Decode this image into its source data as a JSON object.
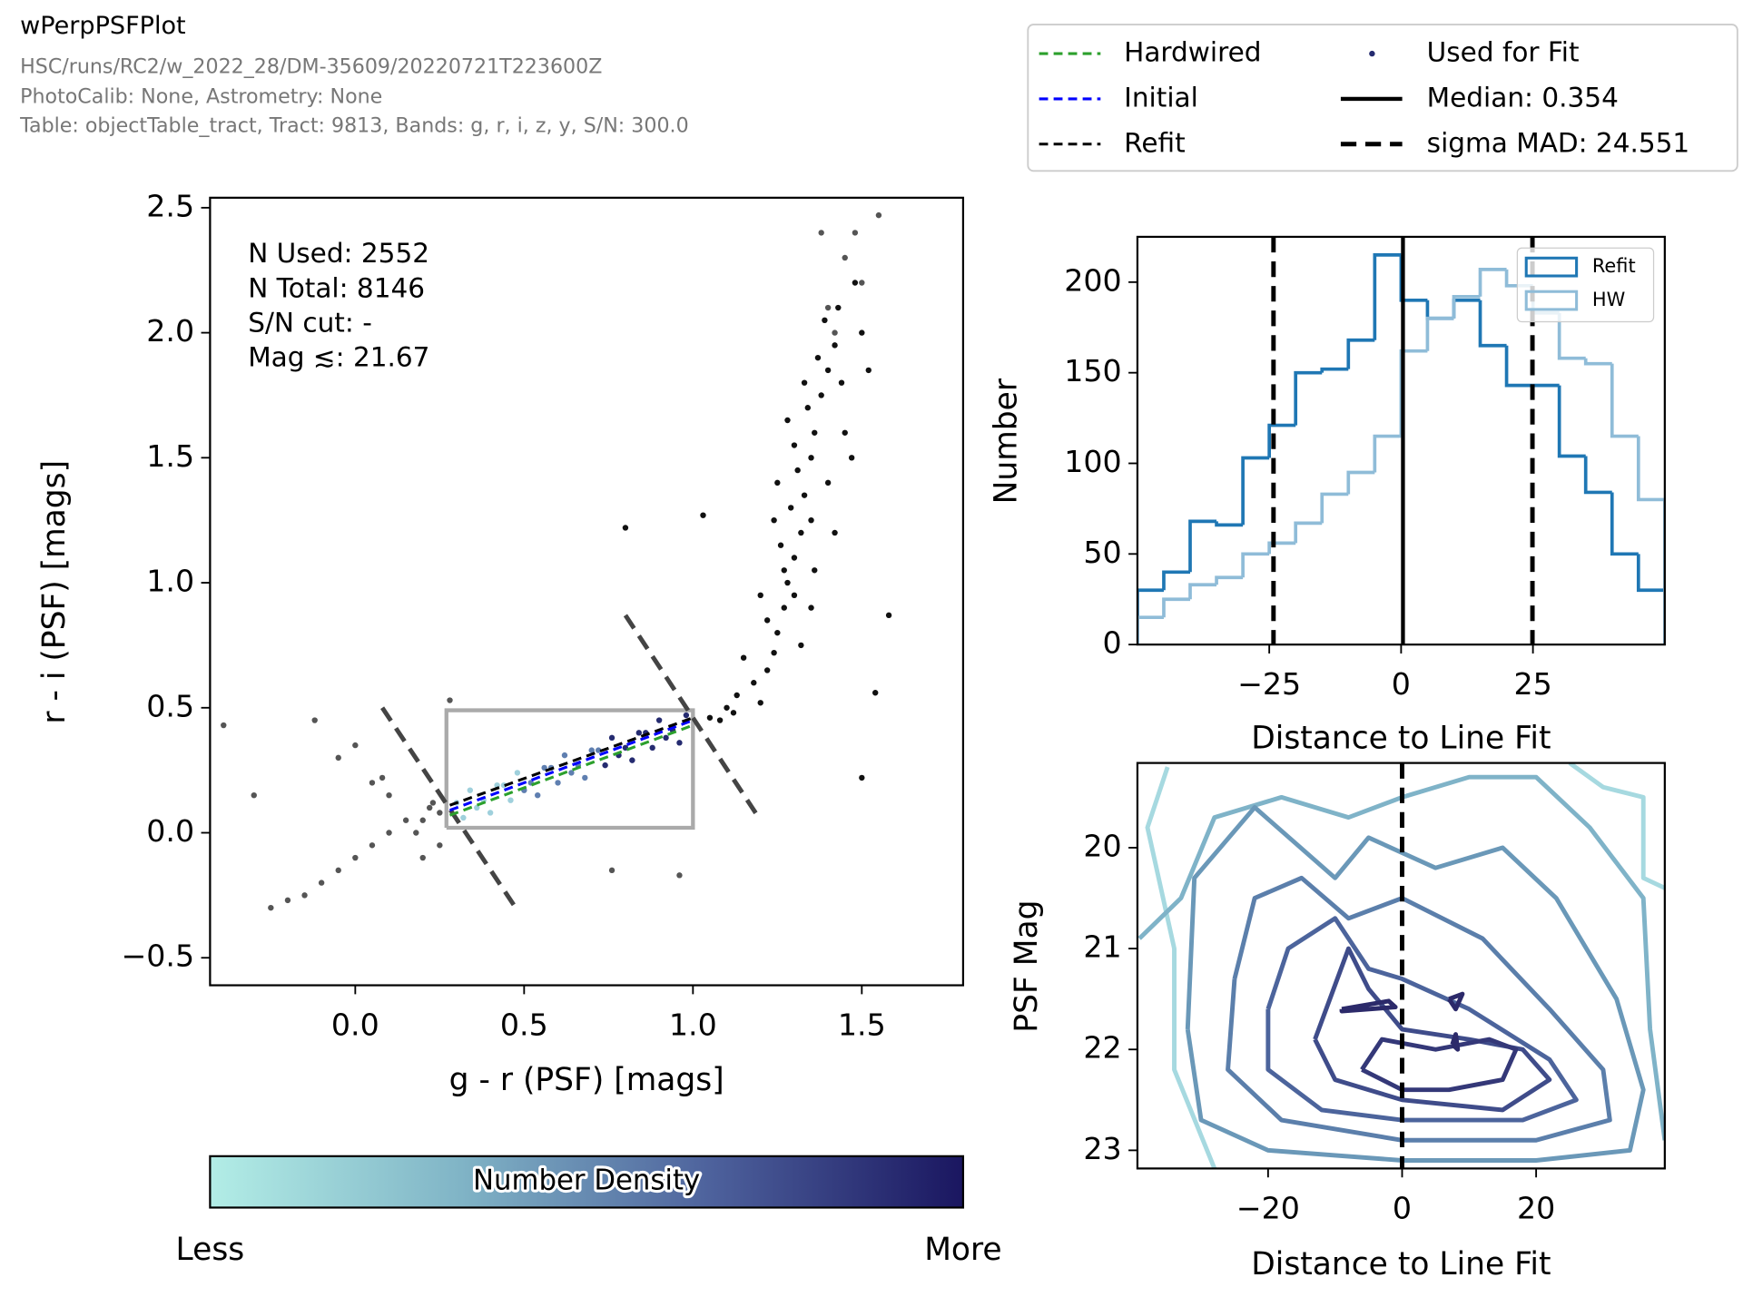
{
  "header": {
    "title": "wPerpPSFPlot",
    "subtitle": [
      "HSC/runs/RC2/w_2022_28/DM-35609/20220721T223600Z",
      "PhotoCalib: None, Astrometry: None",
      "Table: objectTable_tract, Tract: 9813, Bands: g, r, i, z, y, S/N: 300.0"
    ]
  },
  "legend": {
    "entries": [
      {
        "label": "Hardwired",
        "color": "#2ca02c",
        "style": "dashed"
      },
      {
        "label": "Initial",
        "color": "#0000ff",
        "style": "dashed"
      },
      {
        "label": "Refit",
        "color": "#000000",
        "style": "dashed"
      },
      {
        "label": "Used for Fit",
        "color": "#252b70",
        "style": "dot"
      },
      {
        "label": "Median: 0.354",
        "color": "#000000",
        "style": "solid"
      },
      {
        "label": "sigma MAD: 24.551",
        "color": "#000000",
        "style": "bold-dashed"
      }
    ]
  },
  "colorbar": {
    "label": "Number Density",
    "low": "Less",
    "high": "More",
    "colors": [
      "#b2ede6",
      "#80b4c6",
      "#4d619c",
      "#1a1660"
    ]
  },
  "chart_data": [
    {
      "type": "scatter",
      "xlabel": "g - r (PSF) [mags]",
      "ylabel": "r - i (PSF) [mags]",
      "xlim": [
        -0.43,
        1.8
      ],
      "ylim": [
        -0.61,
        2.54
      ],
      "xticks": [
        {
          "value": 0,
          "label": "0.0"
        },
        0.5,
        {
          "value": 1,
          "label": "1.0"
        },
        1.5
      ],
      "yticks": [
        {
          "value": -0.5,
          "label": "−0.5"
        },
        {
          "value": 0,
          "label": "0.0"
        },
        0.5,
        {
          "value": 1,
          "label": "1.0"
        },
        1.5,
        {
          "value": 2,
          "label": "2.0"
        },
        2.5
      ],
      "annotation": [
        "N Used: 2552",
        "N Total: 8146",
        "S/N cut: -",
        "Mag ≲: 21.67"
      ],
      "series": [
        {
          "color": "#111111",
          "x": [
            1.05,
            1.1,
            1.13,
            1.18,
            1.2,
            1.22,
            1.24,
            1.25,
            1.27,
            1.28,
            1.3,
            1.26,
            1.32,
            1.29,
            1.33,
            1.31,
            1.35,
            1.3,
            1.36,
            1.34,
            1.38,
            1.33,
            1.4,
            1.37,
            1.42,
            1.39,
            1.43,
            1.35,
            1.4,
            1.27,
            1.22,
            1.15,
            1.45,
            1.25,
            1.42,
            1.3,
            1.36,
            1.44,
            1.47,
            1.2,
            1.28,
            1.35,
            1.24,
            1.32,
            1.08,
            1.12,
            1.58,
            1.54,
            1.5,
            0.8,
            1.03,
            1.48,
            1.5,
            1.52
          ],
          "y": [
            0.46,
            0.5,
            0.55,
            0.6,
            0.52,
            0.65,
            0.72,
            0.8,
            0.9,
            1.0,
            1.1,
            1.15,
            1.2,
            1.3,
            1.35,
            1.45,
            1.5,
            1.55,
            1.6,
            1.7,
            1.75,
            1.8,
            1.85,
            1.9,
            1.95,
            2.05,
            2.1,
            1.25,
            1.4,
            1.05,
            0.85,
            0.7,
            1.6,
            1.4,
            1.2,
            0.95,
            1.05,
            1.8,
            1.5,
            0.95,
            1.65,
            0.9,
            1.25,
            0.75,
            0.45,
            0.48,
            0.87,
            0.56,
            0.22,
            1.22,
            1.27,
            2.2,
            2.0,
            1.85
          ]
        },
        {
          "color": "#555555",
          "x": [
            -0.39,
            -0.3,
            -0.25,
            -0.2,
            -0.15,
            -0.1,
            -0.05,
            0.0,
            0.05,
            0.1,
            0.15,
            0.2,
            0.22,
            0.25,
            0.23,
            -0.12,
            -0.05,
            0.0,
            0.05,
            0.1,
            0.18,
            0.2,
            0.25,
            0.08,
            0.28,
            0.76,
            0.96,
            1.4,
            1.45,
            1.5,
            1.38,
            1.55,
            1.48,
            1.42
          ],
          "y": [
            0.43,
            0.15,
            -0.3,
            -0.27,
            -0.25,
            -0.2,
            -0.15,
            -0.1,
            -0.05,
            0.0,
            0.05,
            0.05,
            0.1,
            0.08,
            0.12,
            0.45,
            0.3,
            0.35,
            0.2,
            0.15,
            0.0,
            -0.1,
            -0.05,
            0.22,
            0.53,
            -0.15,
            -0.17,
            2.1,
            2.3,
            2.2,
            2.4,
            2.47,
            2.4,
            2.0
          ]
        },
        {
          "color": "#9fd0dc",
          "x": [
            0.3,
            0.32,
            0.34,
            0.36,
            0.38,
            0.4,
            0.42,
            0.44,
            0.46,
            0.48
          ],
          "y": [
            0.12,
            0.06,
            0.17,
            0.1,
            0.13,
            0.08,
            0.19,
            0.19,
            0.13,
            0.24
          ]
        },
        {
          "color": "#5f7fb0",
          "x": [
            0.5,
            0.52,
            0.54,
            0.56,
            0.58,
            0.6,
            0.62,
            0.64,
            0.66,
            0.68,
            0.7,
            0.72
          ],
          "y": [
            0.17,
            0.2,
            0.15,
            0.26,
            0.26,
            0.2,
            0.31,
            0.24,
            0.27,
            0.22,
            0.33,
            0.33
          ]
        },
        {
          "color": "#252b70",
          "x": [
            0.74,
            0.76,
            0.78,
            0.8,
            0.82,
            0.84,
            0.86,
            0.88,
            0.9,
            0.92,
            0.94,
            0.96,
            0.98
          ],
          "y": [
            0.27,
            0.38,
            0.31,
            0.34,
            0.29,
            0.4,
            0.4,
            0.34,
            0.45,
            0.38,
            0.41,
            0.36,
            0.47
          ]
        }
      ],
      "lines": [
        {
          "color": "#aaaaaa",
          "style": "box",
          "x": [
            0.27,
            1.0,
            1.0,
            0.27,
            0.27
          ],
          "y": [
            0.02,
            0.02,
            0.49,
            0.49,
            0.02
          ]
        },
        {
          "color": "#444444",
          "style": "bold-dashed",
          "x": [
            0.08,
            0.48
          ],
          "y": [
            0.5,
            -0.31
          ]
        },
        {
          "color": "#444444",
          "style": "bold-dashed",
          "x": [
            0.8,
            1.2
          ],
          "y": [
            0.87,
            0.05
          ]
        },
        {
          "color": "#2ca02c",
          "style": "dashed",
          "x": [
            0.28,
            1.0
          ],
          "y": [
            0.07,
            0.43
          ]
        },
        {
          "color": "#0000ff",
          "style": "dashed",
          "x": [
            0.28,
            1.0
          ],
          "y": [
            0.09,
            0.45
          ]
        },
        {
          "color": "#000000",
          "style": "dashed",
          "x": [
            0.28,
            1.0
          ],
          "y": [
            0.11,
            0.46
          ]
        }
      ]
    },
    {
      "type": "histogram",
      "xlabel": "Distance to Line Fit",
      "ylabel": "Number",
      "xlim": [
        -50,
        50
      ],
      "ylim": [
        0,
        225
      ],
      "xticks": [
        {
          "value": -25,
          "label": "−25"
        },
        0,
        25
      ],
      "yticks": [
        0,
        50,
        100,
        150,
        200
      ],
      "bins": [
        -50,
        -45,
        -40,
        -35,
        -30,
        -25,
        -20,
        -15,
        -10,
        -5,
        0,
        5,
        10,
        15,
        20,
        25,
        30,
        35,
        40,
        45,
        50
      ],
      "series": [
        {
          "name": "Refit",
          "color": "#1f77b4",
          "values": [
            30,
            40,
            68,
            66,
            103,
            121,
            150,
            152,
            168,
            215,
            190,
            180,
            190,
            165,
            143,
            143,
            104,
            84,
            50,
            30
          ]
        },
        {
          "name": "HW",
          "color": "#8fbcd8",
          "values": [
            15,
            25,
            33,
            37,
            50,
            56,
            67,
            83,
            95,
            115,
            162,
            180,
            192,
            207,
            198,
            183,
            158,
            155,
            115,
            80
          ]
        }
      ],
      "vlines": [
        {
          "value": -24.197,
          "color": "#000000",
          "style": "bold-dashed"
        },
        {
          "value": 0.354,
          "color": "#000000",
          "style": "solid"
        },
        {
          "value": 24.905,
          "color": "#000000",
          "style": "bold-dashed"
        }
      ],
      "legend": "upper right"
    },
    {
      "type": "contour",
      "xlabel": "Distance to Line Fit",
      "ylabel": "PSF Mag",
      "xlim": [
        -39.5,
        39.2
      ],
      "ylim": [
        19.16,
        23.18
      ],
      "invert_y": true,
      "xticks": [
        {
          "value": -20,
          "label": "−20"
        },
        0,
        20
      ],
      "yticks": [
        20,
        21,
        22,
        23
      ],
      "series": [
        {
          "color": "#a6d9e0",
          "x": [
            -35,
            -38,
            -34,
            -34,
            -28
          ],
          "y": [
            19.2,
            19.8,
            21,
            22.2,
            23.18
          ]
        },
        {
          "color": "#a6d9e0",
          "x": [
            25,
            30,
            36,
            36,
            39.2
          ],
          "y": [
            19.16,
            19.4,
            19.5,
            20.3,
            20.4
          ]
        },
        {
          "color": "#7fb3c8",
          "x": [
            -39.2,
            -33,
            -28,
            -18,
            -8,
            0,
            10,
            20,
            28,
            36,
            37,
            39.2
          ],
          "y": [
            20.9,
            20.5,
            19.7,
            19.5,
            19.7,
            19.5,
            19.3,
            19.3,
            19.8,
            20.5,
            21.8,
            22.9
          ]
        },
        {
          "color": "#6a98b8",
          "x": [
            -32,
            -31,
            -22,
            -10,
            -5,
            5,
            15,
            23,
            32,
            36,
            34,
            20,
            0,
            -20,
            -30,
            -32
          ],
          "y": [
            21.8,
            20.3,
            19.6,
            20.3,
            19.9,
            20.2,
            20.0,
            20.5,
            21.5,
            22.4,
            23.0,
            23.1,
            23.1,
            23.0,
            22.7,
            21.8
          ]
        },
        {
          "color": "#5b7fab",
          "x": [
            -25,
            -22,
            -15,
            -8,
            0,
            12,
            22,
            30,
            31,
            20,
            0,
            -18,
            -26,
            -25
          ],
          "y": [
            21.3,
            20.5,
            20.3,
            20.7,
            20.5,
            20.9,
            21.6,
            22.2,
            22.7,
            22.9,
            22.9,
            22.7,
            22.2,
            21.3
          ]
        },
        {
          "color": "#4c649c",
          "x": [
            -20,
            -17,
            -10,
            -5,
            0,
            10,
            22,
            26,
            18,
            0,
            -12,
            -20,
            -20
          ],
          "y": [
            21.6,
            21.0,
            20.7,
            21.2,
            21.3,
            21.6,
            22.1,
            22.5,
            22.7,
            22.7,
            22.6,
            22.2,
            21.6
          ]
        },
        {
          "color": "#3f4c8a",
          "x": [
            -13,
            -8,
            -5,
            0,
            10,
            18,
            22,
            15,
            0,
            -10,
            -13
          ],
          "y": [
            21.9,
            21.0,
            21.4,
            21.8,
            21.9,
            22.0,
            22.3,
            22.6,
            22.5,
            22.3,
            21.9
          ]
        },
        {
          "color": "#343878",
          "x": [
            -6,
            -3,
            5,
            13,
            17,
            15,
            7,
            0,
            -6
          ],
          "y": [
            22.2,
            21.9,
            22.0,
            21.9,
            22.0,
            22.3,
            22.4,
            22.4,
            22.2
          ]
        },
        {
          "color": "#2c2a6a",
          "x": [
            -9,
            -2,
            -1,
            -9,
            -9
          ],
          "y": [
            21.6,
            21.52,
            21.58,
            21.62,
            21.6
          ]
        },
        {
          "color": "#2c2a6a",
          "x": [
            7,
            9,
            8,
            7
          ],
          "y": [
            21.5,
            21.45,
            21.6,
            21.5
          ]
        },
        {
          "color": "#2c2a6a",
          "x": [
            7.5,
            8,
            8.3,
            7.5
          ],
          "y": [
            21.95,
            21.85,
            22.0,
            21.95
          ]
        }
      ],
      "vlines": [
        {
          "value": 0,
          "color": "#000000",
          "style": "bold-dashed"
        }
      ]
    }
  ]
}
